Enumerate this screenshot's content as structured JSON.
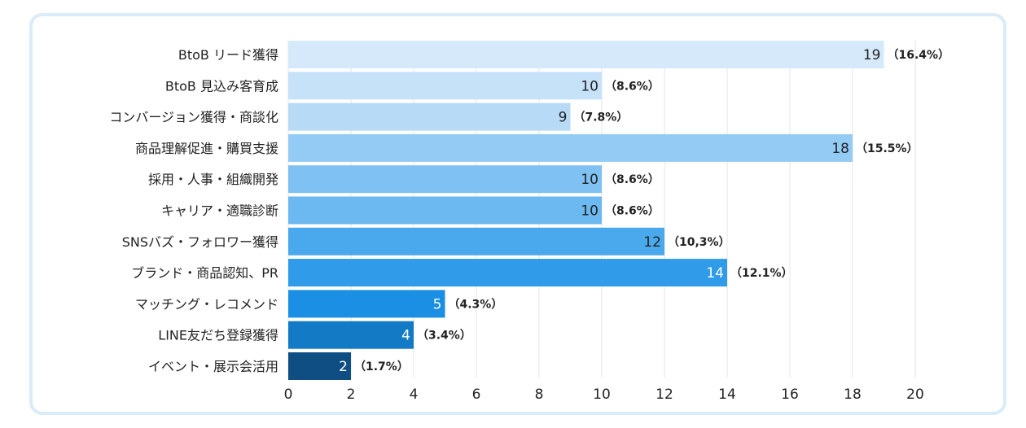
{
  "chart_data": {
    "type": "bar",
    "orientation": "horizontal",
    "title": "",
    "xlabel": "",
    "ylabel": "",
    "xlim": [
      0,
      20
    ],
    "xticks": [
      0,
      2,
      4,
      6,
      8,
      10,
      12,
      14,
      16,
      18,
      20
    ],
    "grid": true,
    "categories": [
      "BtoB リード獲得",
      "BtoB 見込み客育成",
      "コンバージョン獲得・商談化",
      "商品理解促進・購買支援",
      "採用・人事・組織開発",
      "キャリア・適職診断",
      "SNSバズ・フォロワー獲得",
      "ブランド・商品認知、PR",
      "マッチング・レコメンド",
      "LINE友だち登録獲得",
      "イベント・展示会活用"
    ],
    "values": [
      19,
      10,
      9,
      18,
      10,
      10,
      12,
      14,
      5,
      4,
      2
    ],
    "percent_labels": [
      "（16.4%）",
      "（8.6%）",
      "（7.8%）",
      "（15.5%）",
      "（8.6%）",
      "（8.6%）",
      "（10,3%）",
      "（12.1%）",
      "（4.3%）",
      "（3.4%）",
      "（1.7%）"
    ],
    "bar_colors": [
      "#d6e9fa",
      "#c6e2f9",
      "#b7dbf7",
      "#93cbf4",
      "#7fc1f2",
      "#6cb8f0",
      "#4aa8ec",
      "#2f9be9",
      "#1a8fe3",
      "#137bc6",
      "#0f4e82"
    ],
    "value_label_colors": [
      "#222222",
      "#222222",
      "#222222",
      "#222222",
      "#222222",
      "#222222",
      "#222222",
      "#ffffff",
      "#ffffff",
      "#ffffff",
      "#ffffff"
    ]
  }
}
